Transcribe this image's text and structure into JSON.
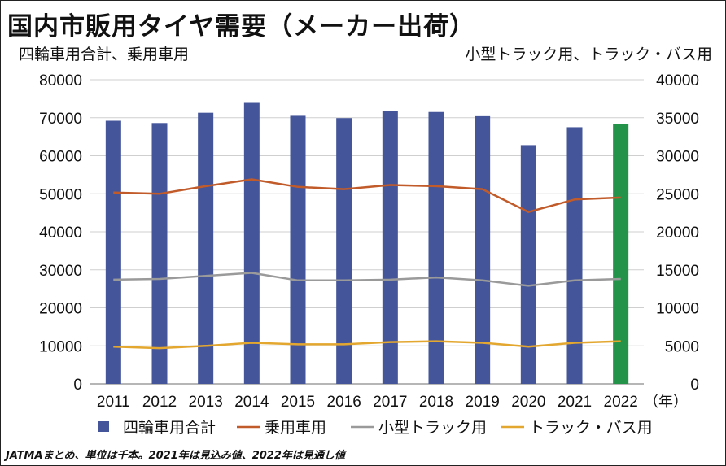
{
  "title": "国内市販用タイヤ需要（メーカー出荷）",
  "left_axis_title": "四輪車用合計、乗用車用",
  "right_axis_title": "小型トラック用、トラック・バス用",
  "note": "JATMAまとめ、単位は千本。2021年は見込み値、2022年は見通し値",
  "chart_data": {
    "type": "bar",
    "title": "国内市販用タイヤ需要（メーカー出荷）",
    "x_unit_label": "（年）",
    "categories": [
      "2011",
      "2012",
      "2013",
      "2014",
      "2015",
      "2016",
      "2017",
      "2018",
      "2019",
      "2020",
      "2021",
      "2022"
    ],
    "y_left": {
      "label": "四輪車用合計、乗用車用",
      "min": 0,
      "max": 80000,
      "step": 10000
    },
    "y_right": {
      "label": "小型トラック用、トラック・バス用",
      "min": 0,
      "max": 40000,
      "step": 5000
    },
    "grid": true,
    "legend_position": "bottom",
    "series": [
      {
        "name": "四輪車用合計",
        "type": "bar",
        "axis": "left",
        "color": "#44559a",
        "highlight_color": "#23934a",
        "highlight_index": 11,
        "values": [
          69200,
          68600,
          71300,
          73900,
          70500,
          69900,
          71700,
          71500,
          70400,
          62800,
          67500,
          68300
        ]
      },
      {
        "name": "乗用車用",
        "type": "line",
        "axis": "left",
        "color": "#c25b2a",
        "values": [
          50300,
          50000,
          52000,
          53800,
          51800,
          51200,
          52300,
          52000,
          51200,
          45200,
          48500,
          49000
        ]
      },
      {
        "name": "小型トラック用",
        "type": "line",
        "axis": "right",
        "color": "#9a9a9a",
        "values": [
          13700,
          13800,
          14200,
          14600,
          13600,
          13600,
          13700,
          14000,
          13600,
          12900,
          13600,
          13800
        ]
      },
      {
        "name": "トラック・バス用",
        "type": "line",
        "axis": "right",
        "color": "#e3a72f",
        "values": [
          4900,
          4700,
          5000,
          5400,
          5200,
          5200,
          5500,
          5600,
          5400,
          4900,
          5400,
          5600
        ]
      }
    ]
  }
}
